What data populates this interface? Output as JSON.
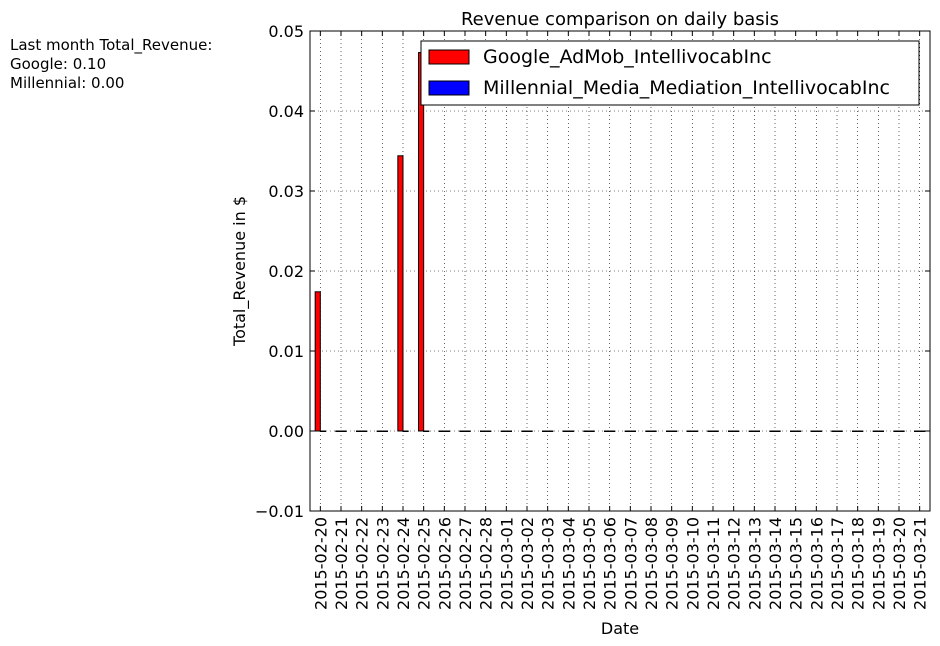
{
  "side_note": {
    "line1": "Last month Total_Revenue:",
    "line2": "Google: 0.10",
    "line3": "Millennial: 0.00"
  },
  "chart_data": {
    "type": "bar",
    "title": "Revenue comparison on daily basis",
    "xlabel": "Date",
    "ylabel": "Total_Revenue in $",
    "ylim": [
      -0.01,
      0.05
    ],
    "yticks": [
      "−0.01",
      "0.00",
      "0.01",
      "0.02",
      "0.03",
      "0.04",
      "0.05"
    ],
    "grid": true,
    "legend_position": "top-right",
    "categories": [
      "2015-02-20",
      "2015-02-21",
      "2015-02-22",
      "2015-02-23",
      "2015-02-24",
      "2015-02-25",
      "2015-02-26",
      "2015-02-27",
      "2015-02-28",
      "2015-03-01",
      "2015-03-02",
      "2015-03-03",
      "2015-03-04",
      "2015-03-05",
      "2015-03-06",
      "2015-03-07",
      "2015-03-08",
      "2015-03-09",
      "2015-03-10",
      "2015-03-11",
      "2015-03-12",
      "2015-03-13",
      "2015-03-14",
      "2015-03-15",
      "2015-03-16",
      "2015-03-17",
      "2015-03-18",
      "2015-03-19",
      "2015-03-20",
      "2015-03-21"
    ],
    "series": [
      {
        "name": "Google_AdMob_IntellivocabInc",
        "color": "#ff0000",
        "values": [
          0.0174,
          0,
          0,
          0,
          0.0344,
          0.0473,
          0,
          0,
          0,
          0,
          0,
          0,
          0,
          0,
          0,
          0,
          0,
          0,
          0,
          0,
          0,
          0,
          0,
          0,
          0,
          0,
          0,
          0,
          0,
          0
        ]
      },
      {
        "name": "Millennial_Media_Mediation_IntellivocabInc",
        "color": "#0000ff",
        "values": [
          0,
          0,
          0,
          0,
          0,
          0,
          0,
          0,
          0,
          0,
          0,
          0,
          0,
          0,
          0,
          0,
          0,
          0,
          0,
          0,
          0,
          0,
          0,
          0,
          0,
          0,
          0,
          0,
          0,
          0
        ]
      }
    ]
  }
}
